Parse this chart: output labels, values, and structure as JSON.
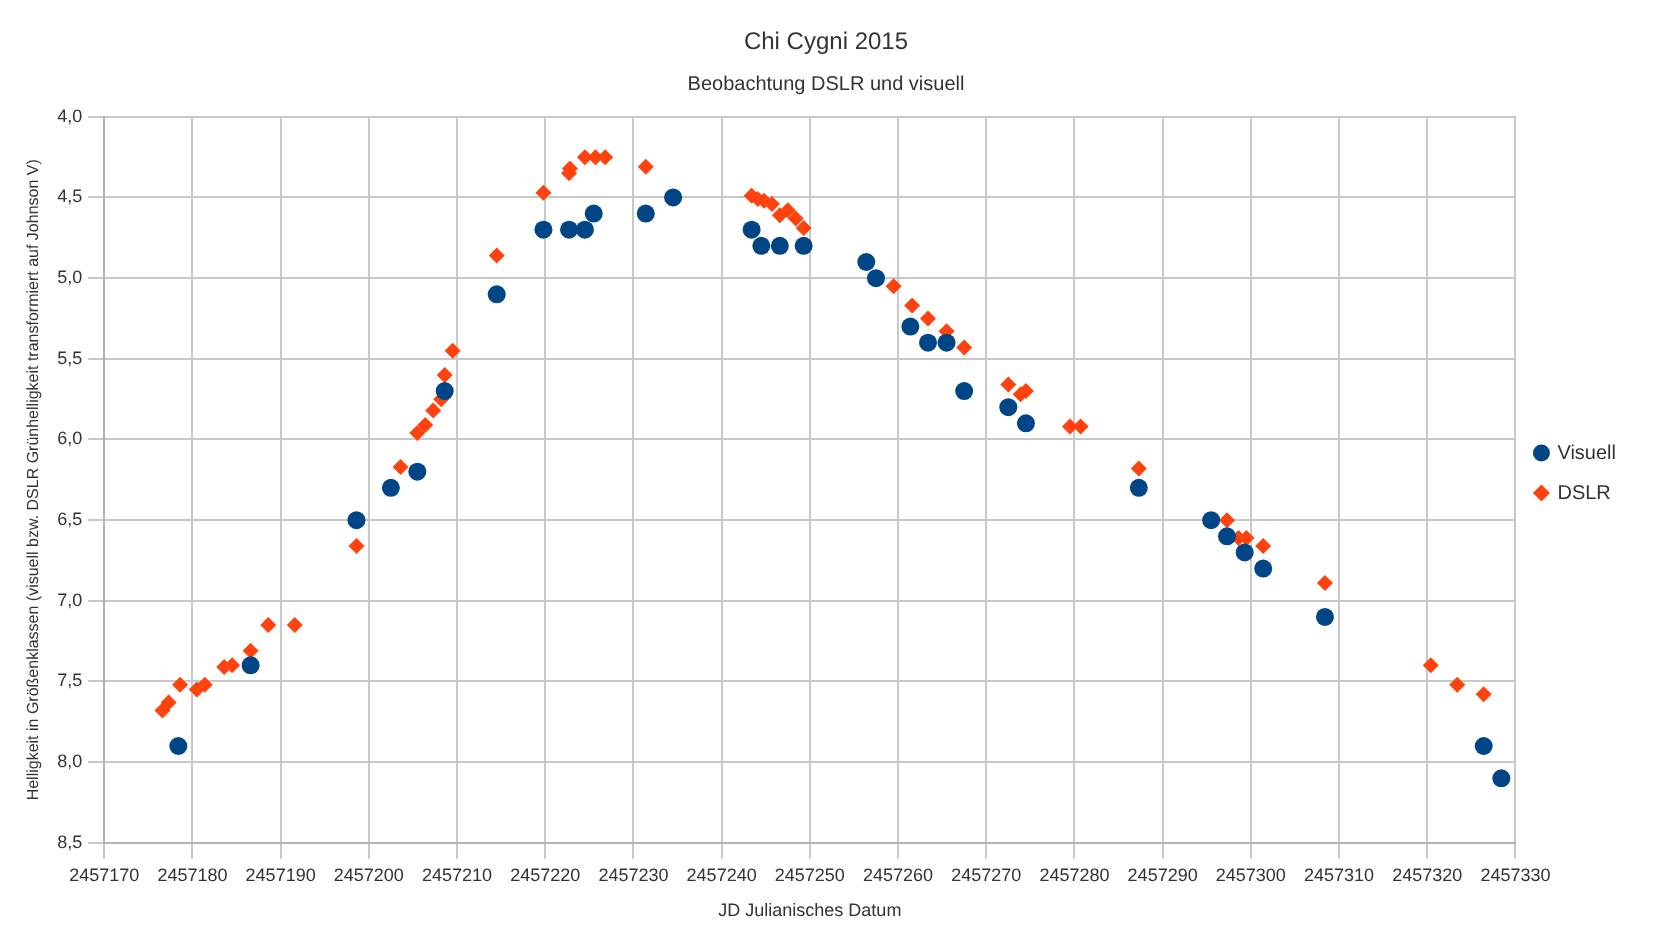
{
  "chart_data": {
    "type": "scatter",
    "title": "Chi Cygni 2015",
    "subtitle": "Beobachtung DSLR und visuell",
    "xlabel": "JD Julianisches Datum",
    "ylabel": "Helligkeit in Größenklassen (visuell bzw. DSLR Grünhelligkeit transformiert auf Johnson V)",
    "xlim": [
      2457170,
      2457330
    ],
    "xticks": [
      2457170,
      2457180,
      2457190,
      2457200,
      2457210,
      2457220,
      2457230,
      2457240,
      2457250,
      2457260,
      2457270,
      2457280,
      2457290,
      2457300,
      2457310,
      2457320,
      2457330
    ],
    "ylim": [
      8.5,
      4.0
    ],
    "yticks": [
      {
        "value": 4.0,
        "label": "4,0"
      },
      {
        "value": 4.5,
        "label": "4,5"
      },
      {
        "value": 5.0,
        "label": "5,0"
      },
      {
        "value": 5.5,
        "label": "5,5"
      },
      {
        "value": 6.0,
        "label": "6,0"
      },
      {
        "value": 6.5,
        "label": "6,5"
      },
      {
        "value": 7.0,
        "label": "7,0"
      },
      {
        "value": 7.5,
        "label": "7,5"
      },
      {
        "value": 8.0,
        "label": "8,0"
      },
      {
        "value": 8.5,
        "label": "8,5"
      }
    ],
    "grid": true,
    "legend": "right",
    "series": [
      {
        "name": "Visuell",
        "color": "#004586",
        "marker": "circle",
        "x": [
          2457178.4,
          2457186.6,
          2457198.6,
          2457202.5,
          2457205.5,
          2457208.6,
          2457214.5,
          2457219.8,
          2457222.7,
          2457224.5,
          2457225.5,
          2457231.4,
          2457234.5,
          2457243.4,
          2457244.5,
          2457246.6,
          2457249.3,
          2457256.4,
          2457257.5,
          2457261.4,
          2457263.4,
          2457265.5,
          2457267.5,
          2457272.5,
          2457274.5,
          2457287.3,
          2457295.5,
          2457297.3,
          2457299.3,
          2457301.4,
          2457308.4,
          2457326.4,
          2457328.4
        ],
        "values": [
          7.9,
          7.4,
          6.5,
          6.3,
          6.2,
          5.7,
          5.1,
          4.7,
          4.7,
          4.7,
          4.6,
          4.6,
          4.5,
          4.7,
          4.8,
          4.8,
          4.8,
          4.9,
          5.0,
          5.3,
          5.4,
          5.4,
          5.7,
          5.8,
          5.9,
          6.3,
          6.5,
          6.6,
          6.7,
          6.8,
          7.1,
          7.9,
          8.1
        ]
      },
      {
        "name": "DSLR",
        "color": "#ff420e",
        "marker": "diamond",
        "x": [
          2457176.6,
          2457177.3,
          2457178.6,
          2457180.5,
          2457181.4,
          2457183.6,
          2457184.5,
          2457186.6,
          2457188.6,
          2457191.6,
          2457198.6,
          2457203.6,
          2457205.5,
          2457206.4,
          2457207.3,
          2457208.2,
          2457208.6,
          2457209.5,
          2457214.5,
          2457219.8,
          2457222.7,
          2457222.8,
          2457224.5,
          2457225.7,
          2457226.8,
          2457231.4,
          2457243.4,
          2457244.1,
          2457244.8,
          2457245.7,
          2457246.6,
          2457247.5,
          2457248.4,
          2457249.3,
          2457259.5,
          2457261.6,
          2457263.4,
          2457265.5,
          2457267.5,
          2457272.5,
          2457273.9,
          2457274.5,
          2457279.5,
          2457280.7,
          2457287.3,
          2457297.3,
          2457298.6,
          2457299.5,
          2457301.4,
          2457308.4,
          2457320.4,
          2457323.4,
          2457326.4
        ],
        "values": [
          7.68,
          7.63,
          7.52,
          7.55,
          7.52,
          7.41,
          7.4,
          7.31,
          7.15,
          7.15,
          6.66,
          6.17,
          5.96,
          5.91,
          5.82,
          5.75,
          5.6,
          5.45,
          4.86,
          4.47,
          4.35,
          4.32,
          4.25,
          4.25,
          4.25,
          4.31,
          4.49,
          4.51,
          4.52,
          4.54,
          4.61,
          4.58,
          4.63,
          4.69,
          5.05,
          5.17,
          5.25,
          5.33,
          5.43,
          5.66,
          5.72,
          5.7,
          5.92,
          5.92,
          6.18,
          6.5,
          6.61,
          6.61,
          6.66,
          6.89,
          7.4,
          7.52,
          7.58
        ]
      }
    ]
  }
}
